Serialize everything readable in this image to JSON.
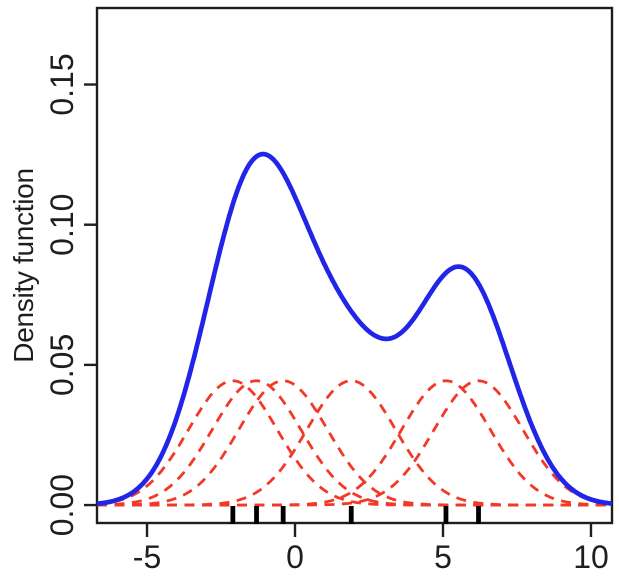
{
  "figure": {
    "background_color": "#ffffff",
    "axis_color": "#1e1e1e"
  },
  "chart_data": {
    "type": "line",
    "title": "",
    "xlabel": "",
    "ylabel": "Density function",
    "x_tick_values": [
      -5,
      0,
      5,
      10
    ],
    "x_tick_labels": [
      "-5",
      "0",
      "5",
      "10"
    ],
    "y_tick_values": [
      0,
      0.05,
      0.1,
      0.15
    ],
    "y_tick_labels": [
      "0.00",
      "0.05",
      "0.10",
      "0.15"
    ],
    "xlim": [
      -6.69,
      10.71
    ],
    "ylim": [
      -0.0064,
      0.1773
    ],
    "grid": false,
    "legend_position": "none",
    "kernel": "gaussian",
    "n_points": 6,
    "sample_points": [
      -2.1,
      -1.3,
      -0.4,
      1.9,
      5.1,
      6.2
    ],
    "bandwidth_sd": 1.5,
    "individual_kernel_peak": 0.0443,
    "kde_peak_value": 0.125,
    "kde_peak_x": -1.0,
    "kde_valley_value": 0.059,
    "kde_second_peak_value": 0.085,
    "kde_second_peak_x": 5.6,
    "series": [
      {
        "name": "kernel-density-estimate",
        "role": "sum-of-kernels",
        "color": "#2125e8",
        "style": "solid"
      },
      {
        "name": "individual-kernels",
        "role": "one-kernel-per-data-point",
        "color": "#f43828",
        "style": "dashed"
      }
    ],
    "rug": {
      "show": true,
      "color": "#000000",
      "positions": [
        -2.1,
        -1.3,
        -0.4,
        1.9,
        5.1,
        6.2
      ]
    }
  }
}
